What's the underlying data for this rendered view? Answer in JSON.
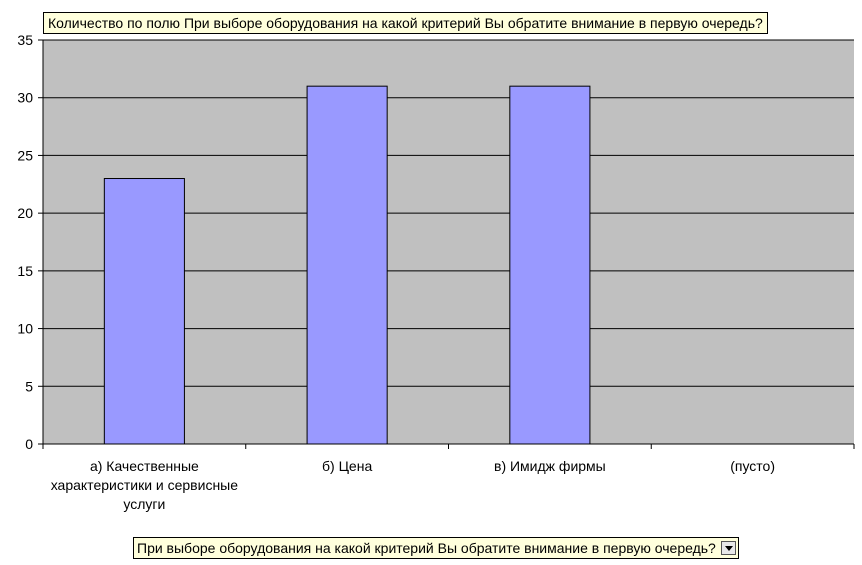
{
  "data_field_button": "Количество по полю При выборе оборудования на какой критерий Вы обратите внимание в первую очередь?",
  "category_field_button": "При выборе оборудования на какой критерий Вы обратите внимание в первую очередь?",
  "chart_data": {
    "type": "bar",
    "categories": [
      "а) Качественные характеристики и сервисные услуги",
      "б) Цена",
      "в) Имидж фирмы",
      "(пусто)"
    ],
    "category_label_lines": [
      [
        "а) Качественные",
        "характеристики и сервисные",
        "услуги"
      ],
      [
        "б) Цена"
      ],
      [
        "в) Имидж фирмы"
      ],
      [
        "(пусто)"
      ]
    ],
    "values": [
      23,
      31,
      31,
      null
    ],
    "ylim": [
      0,
      35
    ],
    "yticks": [
      0,
      5,
      10,
      15,
      20,
      25,
      30,
      35
    ],
    "grid": true,
    "colors": {
      "bar": "#9999ff",
      "bar_border": "#000000",
      "plot_bg": "#c0c0c0",
      "grid": "#000000"
    }
  }
}
